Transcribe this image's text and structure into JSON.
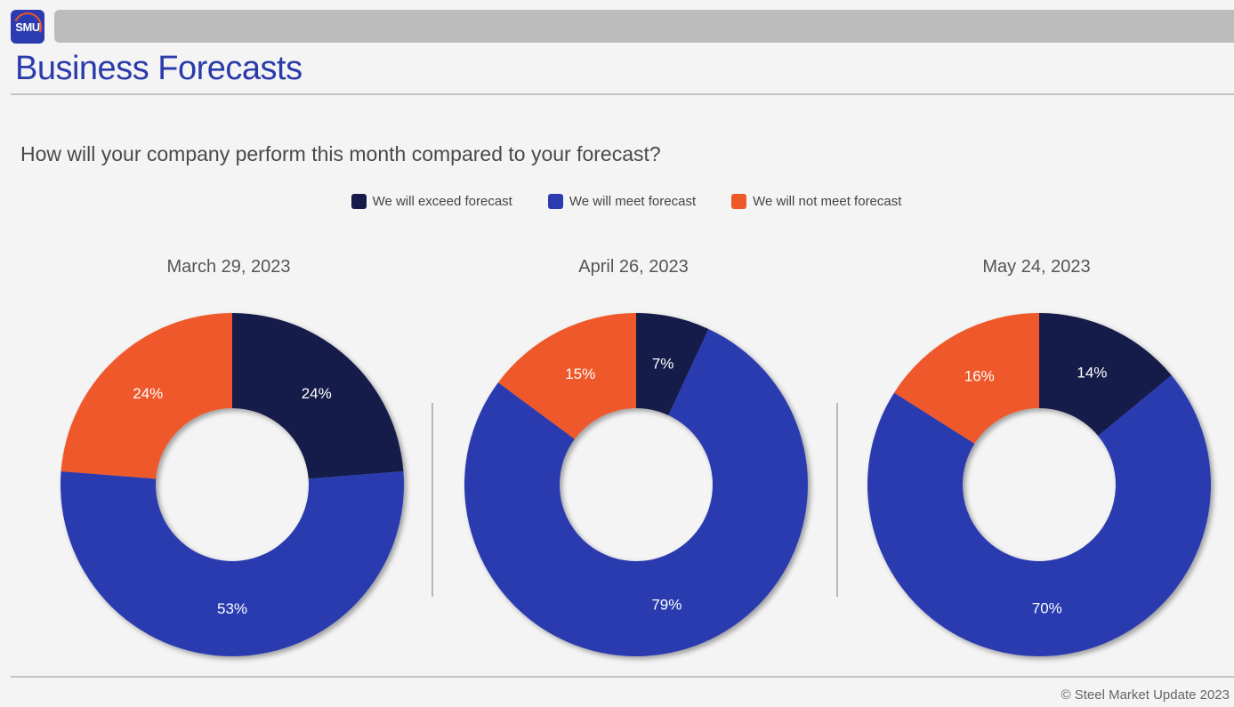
{
  "logo": {
    "text": "SMU"
  },
  "page_title": "Business Forecasts",
  "question": "How will your company perform this month compared to your forecast?",
  "legend": [
    {
      "label": "We will exceed forecast",
      "color": "#171b4a"
    },
    {
      "label": "We will meet forecast",
      "color": "#2c3bb0"
    },
    {
      "label": "We will not meet forecast",
      "color": "#ef5829"
    }
  ],
  "footer": "© Steel Market Update 2023",
  "chart_data": [
    {
      "type": "pie",
      "title": "March 29, 2023",
      "categories": [
        "We will exceed forecast",
        "We will meet forecast",
        "We will not meet forecast"
      ],
      "values": [
        24,
        53,
        24
      ],
      "labels": [
        "24%",
        "53%",
        "24%"
      ],
      "colors": [
        "#171b4a",
        "#2c3bb0",
        "#ef5829"
      ]
    },
    {
      "type": "pie",
      "title": "April 26, 2023",
      "categories": [
        "We will exceed forecast",
        "We will meet forecast",
        "We will not meet forecast"
      ],
      "values": [
        7,
        79,
        15
      ],
      "labels": [
        "7%",
        "79%",
        "15%"
      ],
      "colors": [
        "#171b4a",
        "#2c3bb0",
        "#ef5829"
      ]
    },
    {
      "type": "pie",
      "title": "May 24, 2023",
      "categories": [
        "We will exceed forecast",
        "We will meet forecast",
        "We will not meet forecast"
      ],
      "values": [
        14,
        70,
        16
      ],
      "labels": [
        "14%",
        "70%",
        "16%"
      ],
      "colors": [
        "#171b4a",
        "#2c3bb0",
        "#ef5829"
      ]
    }
  ]
}
